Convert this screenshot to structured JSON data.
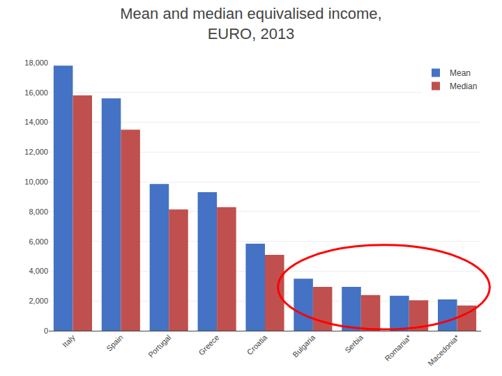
{
  "chart_data": {
    "type": "bar",
    "title": "Mean and median equivalised income,\nEURO, 2013",
    "categories": [
      "Italy",
      "Spain",
      "Portugal",
      "Greece",
      "Croatia",
      "Bulgaria",
      "Serbia",
      "Romania*",
      "Macedonia*"
    ],
    "series": [
      {
        "name": "Mean",
        "color": "#4472C4",
        "values": [
          17800,
          15600,
          9850,
          9300,
          5850,
          3500,
          2950,
          2350,
          2100
        ]
      },
      {
        "name": "Median",
        "color": "#C0504D",
        "values": [
          15800,
          13500,
          8150,
          8300,
          5100,
          2950,
          2400,
          2050,
          1700
        ]
      }
    ],
    "ylim": [
      0,
      18000
    ],
    "yticks": [
      0,
      {
        "value": 2000,
        "label": "2,000"
      },
      {
        "value": 4000,
        "label": "4,000"
      },
      {
        "value": 6000,
        "label": "6,000"
      },
      {
        "value": 8000,
        "label": "8,000"
      },
      {
        "value": 10000,
        "label": "10,000"
      },
      {
        "value": 12000,
        "label": "12,000"
      },
      {
        "value": 14000,
        "label": "14,000"
      },
      {
        "value": 16000,
        "label": "16,000"
      },
      {
        "value": 18000,
        "label": "18,000"
      }
    ],
    "grid": true,
    "legend": "upper right"
  }
}
